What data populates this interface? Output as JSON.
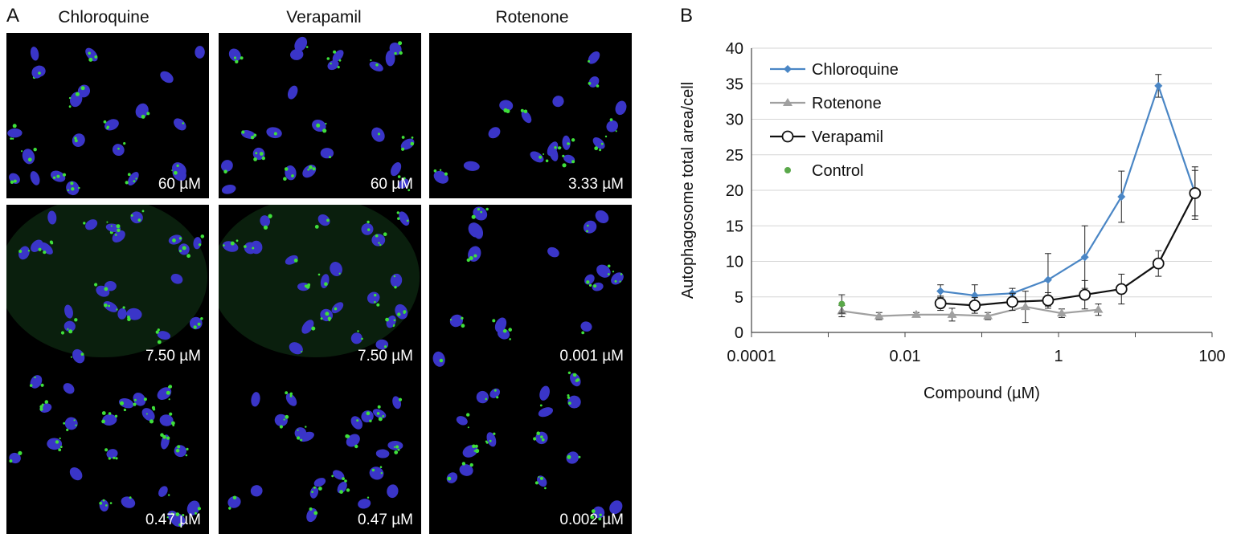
{
  "panel_a": {
    "letter": "A",
    "columns": [
      "Chloroquine",
      "Verapamil",
      "Rotenone"
    ],
    "rows": [
      [
        "60 µM",
        "60 µM",
        "3.33 µM"
      ],
      [
        "7.50 µM",
        "7.50 µM",
        "0.001 µM"
      ],
      [
        "0.47 µM",
        "0.47 µM",
        "0.002 µM"
      ]
    ]
  },
  "panel_b": {
    "letter": "B"
  },
  "colors": {
    "chloroquine": "#4a86c5",
    "rotenone": "#a0a0a0",
    "verapamil": "#111111",
    "control": "#5aa84a",
    "nucleus": "#3a35c8",
    "autophagosome": "#3fe03a"
  },
  "chart_data": {
    "type": "line",
    "xlabel": "Compound (µM)",
    "ylabel": "Autophagosome total area/cell",
    "xscale": "log",
    "xlim": [
      0.0001,
      100
    ],
    "ylim": [
      0,
      40
    ],
    "xticks": [
      {
        "value": 0.0001,
        "label": "0.0001"
      },
      {
        "value": 0.01,
        "label": "0.01"
      },
      {
        "value": 1,
        "label": "1"
      },
      {
        "value": 100,
        "label": "100"
      }
    ],
    "yticks": [
      0,
      5,
      10,
      15,
      20,
      25,
      30,
      35,
      40
    ],
    "grid": "horizontal",
    "legend_position": "top-left",
    "series": [
      {
        "name": "Chloroquine",
        "marker": "diamond",
        "color": "#4a86c5",
        "x": [
          0.029,
          0.081,
          0.25,
          0.73,
          2.2,
          6.6,
          20,
          60
        ],
        "y": [
          5.8,
          5.2,
          5.5,
          7.4,
          10.6,
          19.1,
          34.7,
          19.6
        ],
        "err": [
          0.9,
          1.5,
          0.7,
          3.7,
          4.4,
          3.6,
          1.6,
          3.2
        ]
      },
      {
        "name": "Rotenone",
        "marker": "triangle",
        "color": "#a0a0a0",
        "x": [
          0.0015,
          0.0046,
          0.014,
          0.041,
          0.12,
          0.37,
          1.1,
          3.3
        ],
        "y": [
          3.0,
          2.3,
          2.5,
          2.5,
          2.3,
          3.6,
          2.7,
          3.2
        ],
        "err": [
          0.8,
          0.5,
          0.3,
          0.9,
          0.5,
          2.2,
          0.6,
          0.8
        ]
      },
      {
        "name": "Verapamil",
        "marker": "open-circle",
        "color": "#111111",
        "x": [
          0.029,
          0.081,
          0.25,
          0.73,
          2.2,
          6.6,
          20,
          60
        ],
        "y": [
          4.1,
          3.8,
          4.3,
          4.5,
          5.3,
          6.1,
          9.7,
          19.6
        ],
        "err": [
          1.0,
          1.1,
          1.2,
          1.1,
          2.0,
          2.1,
          1.8,
          3.7
        ]
      },
      {
        "name": "Control",
        "marker": "dot",
        "color": "#5aa84a",
        "x": [
          0.0015
        ],
        "y": [
          4.0
        ],
        "err": [
          1.3
        ]
      }
    ]
  }
}
